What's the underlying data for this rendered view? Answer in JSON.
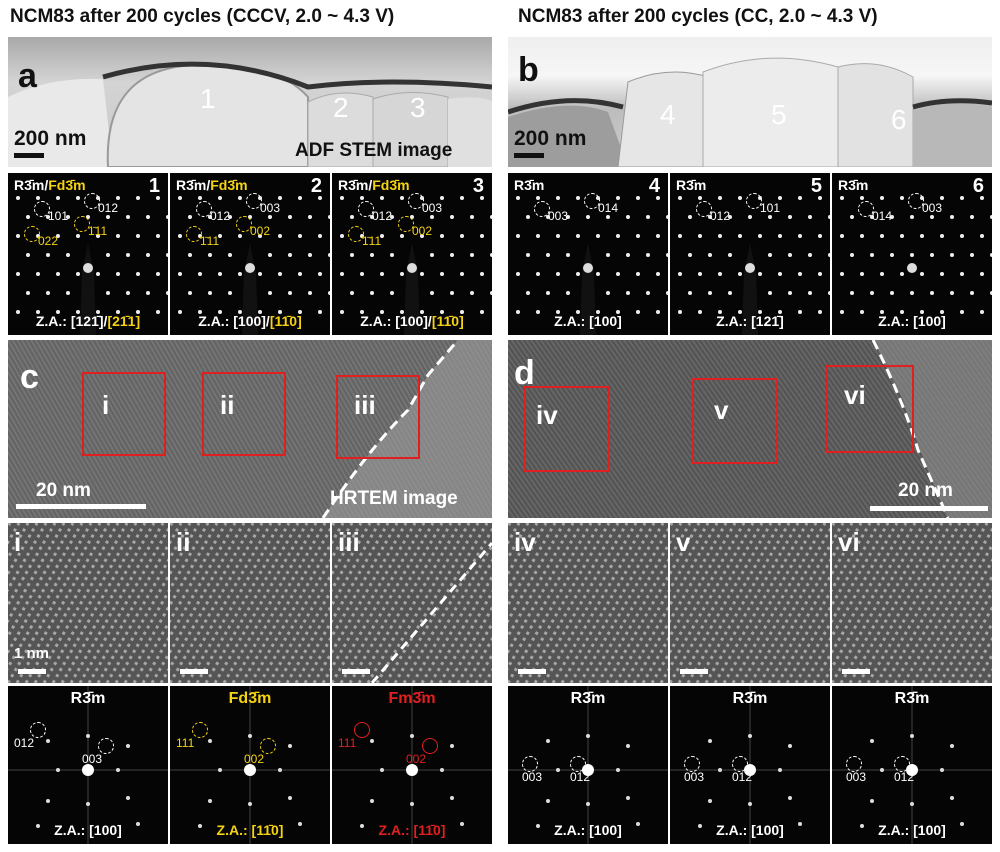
{
  "titles": {
    "left": "NCM83 after 200 cycles (CCCV, 2.0 ~ 4.3 V)",
    "right": "NCM83 after 200 cycles (CC, 2.0 ~ 4.3 V)"
  },
  "panel_letters": {
    "a": "a",
    "b": "b",
    "c": "c",
    "d": "d"
  },
  "stem": {
    "a_scale": "200 nm",
    "b_scale": "200 nm",
    "a_caption": "ADF STEM image",
    "a_particles": [
      "1",
      "2",
      "3"
    ],
    "b_particles": [
      "4",
      "5",
      "6"
    ]
  },
  "saed": [
    {
      "num": "1",
      "phase_white": "R3̄m/",
      "phase_yellow": "Fd3̄m",
      "za_white": "Z.A.: [121̄]/",
      "za_yellow": "[21̄1]",
      "spots_w": [
        "101",
        "012"
      ],
      "spots_y": [
        "022",
        "1̄11"
      ]
    },
    {
      "num": "2",
      "phase_white": "R3̄m/",
      "phase_yellow": "Fd3̄m",
      "za_white": "Z.A.: [100]/",
      "za_yellow": "[11̄0]",
      "spots_w": [
        "012",
        "003"
      ],
      "spots_y": [
        "1̄11",
        "002"
      ]
    },
    {
      "num": "3",
      "phase_white": "R3̄m/",
      "phase_yellow": "Fd3̄m",
      "za_white": "Z.A.: [100]/",
      "za_yellow": "[11̄0]",
      "spots_w": [
        "012",
        "003"
      ],
      "spots_y": [
        "1̄11",
        "002"
      ]
    },
    {
      "num": "4",
      "phase_white": "R3̄m",
      "za_white": "Z.A.: [100]",
      "spots_w": [
        "003",
        "014"
      ]
    },
    {
      "num": "5",
      "phase_white": "R3̄m",
      "za_white": "Z.A.: [121̄]",
      "spots_w": [
        "012",
        "101"
      ]
    },
    {
      "num": "6",
      "phase_white": "R3̄m",
      "za_white": "Z.A.: [100]",
      "spots_w": [
        "014",
        "003"
      ]
    }
  ],
  "hrtem": {
    "c_scale": "20 nm",
    "d_scale": "20 nm",
    "c_caption": "HRTEM image",
    "c_boxes": [
      "i",
      "ii",
      "iii"
    ],
    "d_boxes": [
      "iv",
      "v",
      "vi"
    ]
  },
  "lattice": {
    "labels": [
      "i",
      "ii",
      "iii",
      "iv",
      "v",
      "vi"
    ],
    "scale": "1 nm"
  },
  "fft": [
    {
      "phase": "R3̄m",
      "phase_color": "#ffffff",
      "za": "Z.A.: [100]",
      "za_color": "#ffffff",
      "spots": [
        "012",
        "003"
      ]
    },
    {
      "phase": "Fd3̄m",
      "phase_color": "#f5d312",
      "za": "Z.A.: [11̄0]",
      "za_color": "#f5d312",
      "spots": [
        "111",
        "002"
      ]
    },
    {
      "phase": "Fm3̄m",
      "phase_color": "#e0201f",
      "za": "Z.A.: [11̄0]",
      "za_color": "#e0201f",
      "spots": [
        "111",
        "002"
      ]
    },
    {
      "phase": "R3̄m",
      "phase_color": "#ffffff",
      "za": "Z.A.: [100]",
      "za_color": "#ffffff",
      "spots": [
        "003",
        "012"
      ]
    },
    {
      "phase": "R3̄m",
      "phase_color": "#ffffff",
      "za": "Z.A.: [100]",
      "za_color": "#ffffff",
      "spots": [
        "003",
        "012"
      ]
    },
    {
      "phase": "R3̄m",
      "phase_color": "#ffffff",
      "za": "Z.A.: [100]",
      "za_color": "#ffffff",
      "spots": [
        "003",
        "012"
      ]
    }
  ]
}
